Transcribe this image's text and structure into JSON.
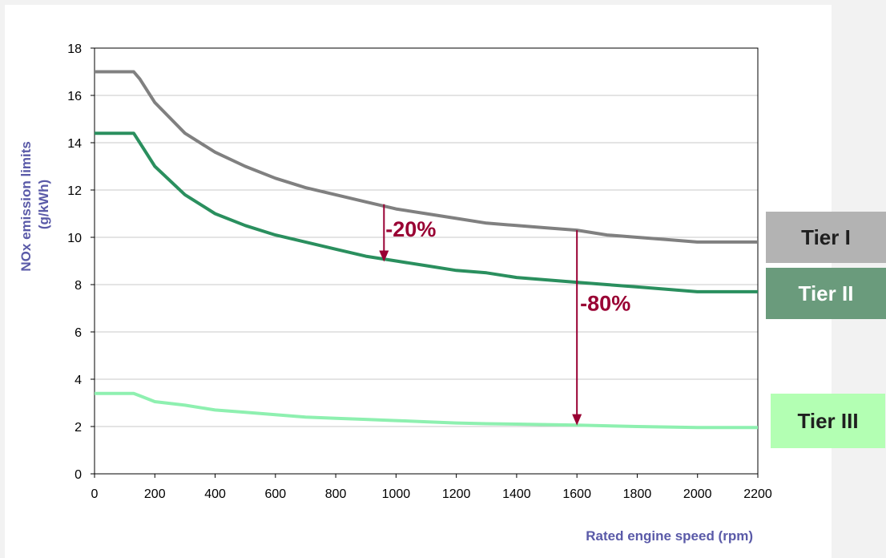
{
  "chart_data": {
    "type": "line",
    "xlabel": "Rated engine speed (rpm)",
    "ylabel_lines": [
      "NOx emission limits",
      "(g/kWh)"
    ],
    "xlim": [
      0,
      2200
    ],
    "ylim": [
      0,
      18
    ],
    "x_ticks": [
      "0",
      "200",
      "400",
      "600",
      "800",
      "1000",
      "1200",
      "1400",
      "1600",
      "1800",
      "2000",
      "2200"
    ],
    "y_ticks": [
      "0",
      "2",
      "4",
      "6",
      "8",
      "10",
      "12",
      "14",
      "16",
      "18"
    ],
    "grid": "horizontal",
    "series": [
      {
        "name": "Tier I",
        "color": "#808080",
        "x": [
          0,
          130,
          150,
          200,
          300,
          400,
          500,
          600,
          700,
          800,
          900,
          1000,
          1100,
          1200,
          1300,
          1400,
          1500,
          1600,
          1700,
          1800,
          1900,
          1999,
          2200
        ],
        "y": [
          17.0,
          17.0,
          16.7,
          15.7,
          14.4,
          13.6,
          13.0,
          12.5,
          12.1,
          11.8,
          11.5,
          11.2,
          11.0,
          10.8,
          10.6,
          10.5,
          10.4,
          10.3,
          10.1,
          10.0,
          9.9,
          9.8,
          9.8
        ]
      },
      {
        "name": "Tier II",
        "color": "#2a8f5e",
        "x": [
          0,
          130,
          150,
          200,
          300,
          400,
          500,
          600,
          700,
          800,
          900,
          1000,
          1100,
          1200,
          1300,
          1400,
          1500,
          1600,
          1700,
          1800,
          1900,
          1999,
          2200
        ],
        "y": [
          14.4,
          14.4,
          14.0,
          13.0,
          11.8,
          11.0,
          10.5,
          10.1,
          9.8,
          9.5,
          9.2,
          9.0,
          8.8,
          8.6,
          8.5,
          8.3,
          8.2,
          8.1,
          8.0,
          7.9,
          7.8,
          7.7,
          7.7
        ]
      },
      {
        "name": "Tier III",
        "color": "#8ef0b0",
        "x": [
          0,
          130,
          150,
          200,
          300,
          400,
          500,
          600,
          700,
          800,
          900,
          1000,
          1100,
          1200,
          1300,
          1400,
          1500,
          1600,
          1700,
          1800,
          1900,
          1999,
          2200
        ],
        "y": [
          3.4,
          3.4,
          3.3,
          3.05,
          2.9,
          2.7,
          2.6,
          2.5,
          2.4,
          2.35,
          2.3,
          2.25,
          2.2,
          2.15,
          2.12,
          2.1,
          2.08,
          2.06,
          2.03,
          2.0,
          1.98,
          1.96,
          1.96
        ]
      }
    ],
    "annotations": [
      {
        "text": "-20%",
        "x": 960,
        "y_from": 11.4,
        "y_to": 9.0
      },
      {
        "text": "-80%",
        "x": 1600,
        "y_from": 10.3,
        "y_to": 2.08
      }
    ],
    "legend": [
      {
        "label": "Tier I",
        "bg": "#b3b3b3"
      },
      {
        "label": "Tier II",
        "bg": "#6a9b7c"
      },
      {
        "label": "Tier III",
        "bg": "#b3ffb3"
      }
    ]
  }
}
